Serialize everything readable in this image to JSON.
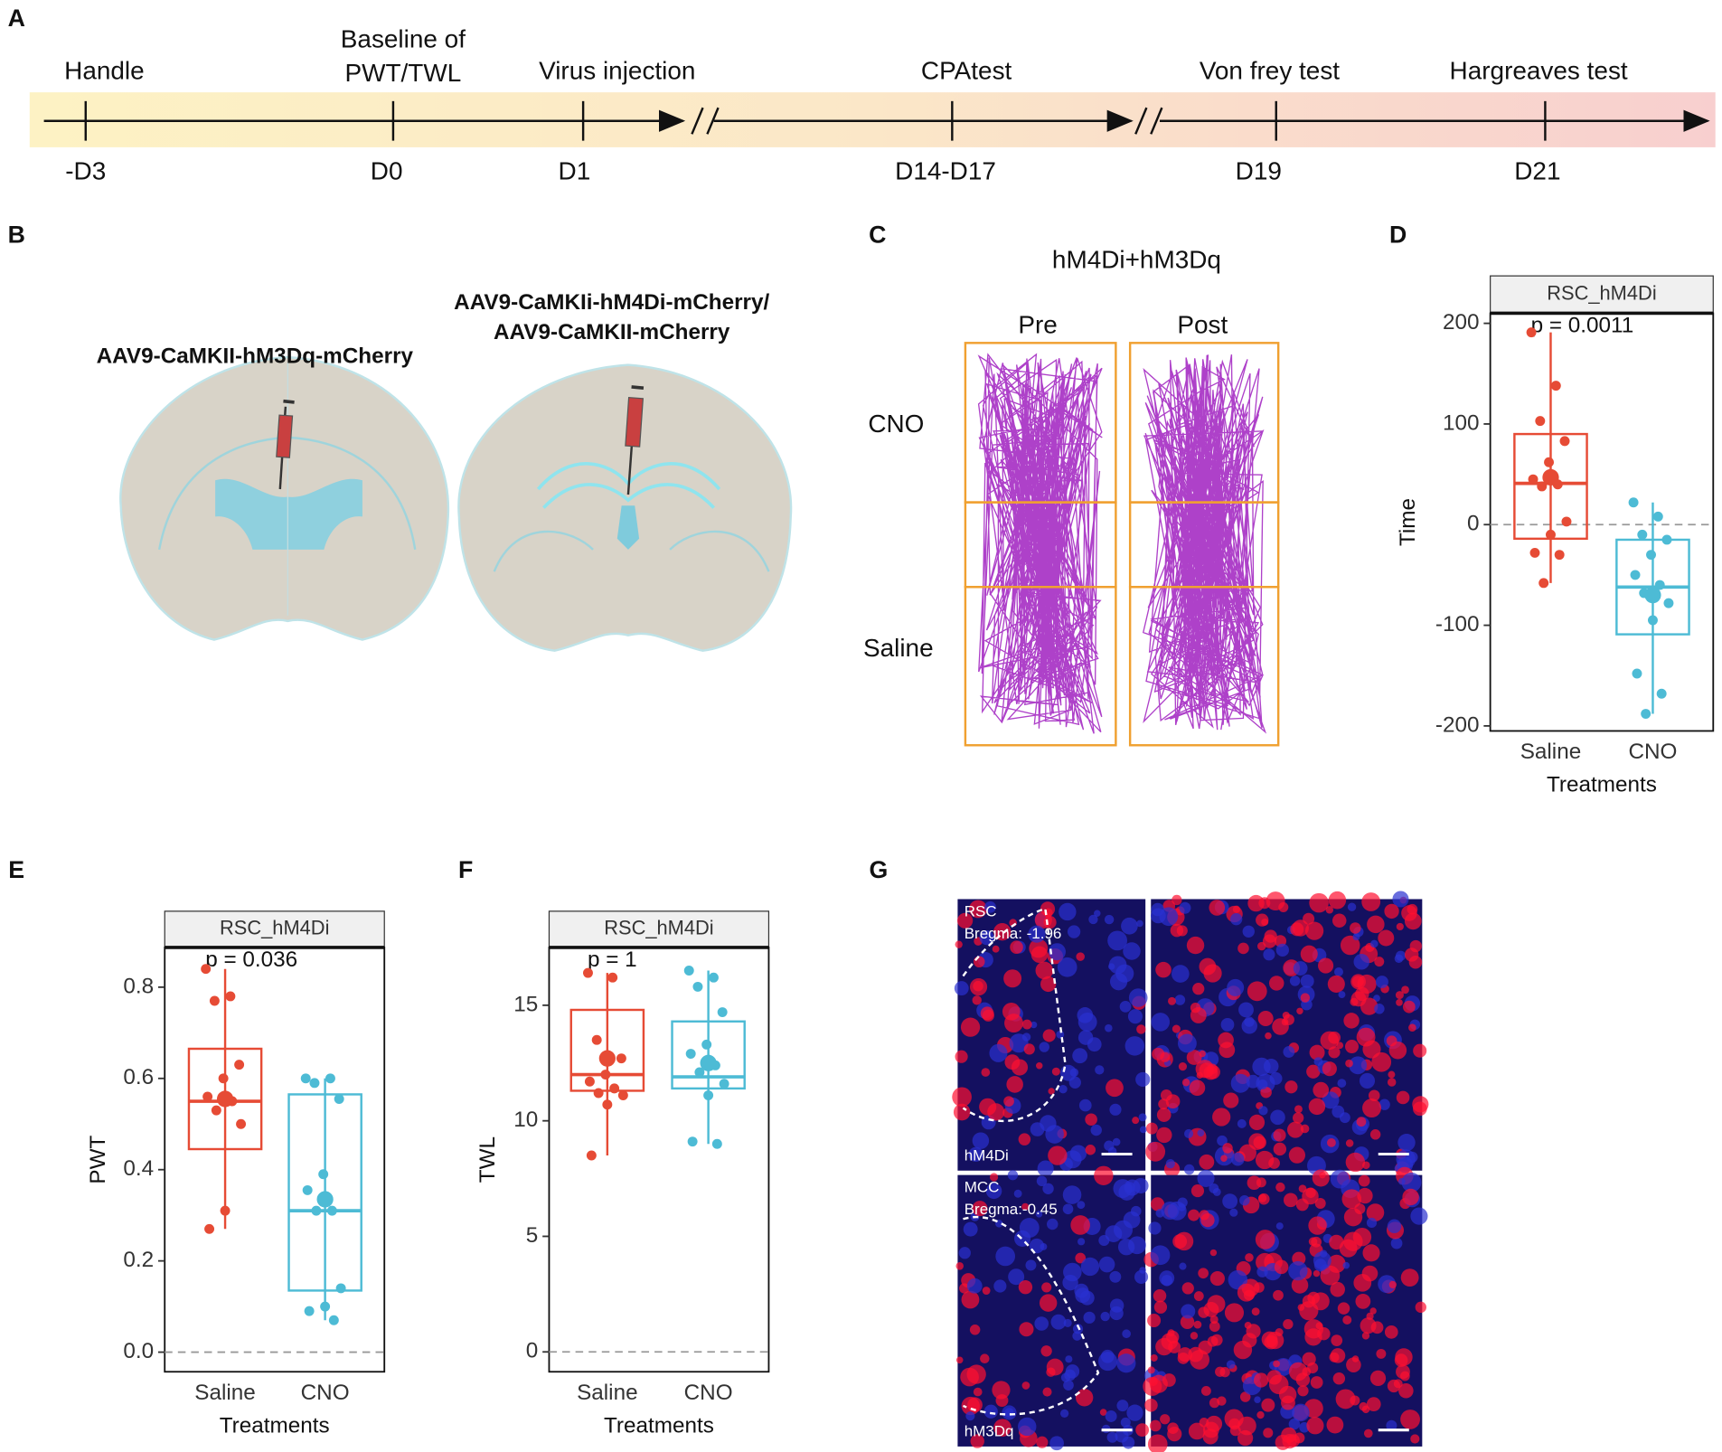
{
  "panel_labels": [
    "A",
    "B",
    "C",
    "D",
    "E",
    "F",
    "G"
  ],
  "timeline": {
    "events": [
      {
        "label_lines": [
          "Handle"
        ],
        "day": "-D3"
      },
      {
        "label_lines": [
          "Baseline of",
          "PWT/TWL"
        ],
        "day": "D0"
      },
      {
        "label_lines": [
          "Virus injection"
        ],
        "day": "D1"
      },
      {
        "label_lines": [
          "CPAtest"
        ],
        "day": "D14-D17"
      },
      {
        "label_lines": [
          "Von frey test"
        ],
        "day": "D19"
      },
      {
        "label_lines": [
          "Hargreaves test"
        ],
        "day": "D21"
      }
    ]
  },
  "panel_b": {
    "left_label": "AAV9-CaMKII-hM3Dq-mCherry",
    "right_label_lines": [
      "AAV9-CaMKIi-hM4Di-mCherry/",
      "AAV9-CaMKII-mCherry"
    ]
  },
  "panel_c": {
    "title": "hM4Di+hM3Dq",
    "columns": [
      "Pre",
      "Post"
    ],
    "rows": [
      "CNO",
      "Saline"
    ]
  },
  "panel_g": {
    "top_labels": [
      "RSC",
      "Bregma: -1.96",
      "hM4Di"
    ],
    "bottom_labels": [
      "MCC",
      "Bregma:-0.45",
      "hM3Dq"
    ]
  },
  "chart_data": [
    {
      "type": "box",
      "strip_label": "RSC_hM4Di",
      "annotation": "p = 0.0011",
      "y_label": "Time",
      "x_label": "Treatments",
      "categories": [
        "Saline",
        "CNO"
      ],
      "ylim": [
        -205,
        210
      ],
      "yticks": [
        -200,
        -100,
        0,
        100,
        200
      ],
      "reference_line": 0,
      "boxes": [
        {
          "color": "#e64b35",
          "min": -58,
          "q1": -14,
          "median": 41,
          "q3": 90,
          "max": 191,
          "mean": 47,
          "points": [
            191,
            138,
            103,
            83,
            62,
            45,
            40,
            38,
            3,
            -10,
            -28,
            -30,
            -58
          ]
        },
        {
          "color": "#4dbbd5",
          "min": -188,
          "q1": -109,
          "median": -62,
          "q3": -15,
          "max": 22,
          "mean": -70,
          "points": [
            22,
            8,
            -10,
            -15,
            -30,
            -50,
            -60,
            -68,
            -78,
            -95,
            -148,
            -168,
            -188
          ]
        }
      ]
    },
    {
      "type": "box",
      "strip_label": "RSC_hM4Di",
      "annotation": "p = 0.036",
      "y_label": "PWT",
      "x_label": "Treatments",
      "categories": [
        "Saline",
        "CNO"
      ],
      "ylim": [
        -0.043,
        0.887
      ],
      "yticks": [
        {
          "value": 0,
          "label": "0.0"
        },
        0.2,
        0.4,
        0.6,
        0.8
      ],
      "reference_line": 0,
      "boxes": [
        {
          "color": "#e64b35",
          "min": 0.27,
          "q1": 0.445,
          "median": 0.55,
          "q3": 0.665,
          "max": 0.84,
          "mean": 0.555,
          "points": [
            0.84,
            0.78,
            0.77,
            0.63,
            0.6,
            0.56,
            0.55,
            0.53,
            0.5,
            0.31,
            0.27
          ]
        },
        {
          "color": "#4dbbd5",
          "min": 0.07,
          "q1": 0.135,
          "median": 0.31,
          "q3": 0.565,
          "max": 0.6,
          "mean": 0.335,
          "points": [
            0.6,
            0.6,
            0.59,
            0.555,
            0.39,
            0.355,
            0.31,
            0.31,
            0.14,
            0.1,
            0.09,
            0.07
          ]
        }
      ]
    },
    {
      "type": "box",
      "strip_label": "RSC_hM4Di",
      "annotation": "p = 1",
      "y_label": "TWL",
      "x_label": "Treatments",
      "categories": [
        "Saline",
        "CNO"
      ],
      "ylim": [
        -0.86,
        17.5
      ],
      "yticks": [
        0,
        5,
        10,
        15
      ],
      "reference_line": 0,
      "boxes": [
        {
          "color": "#e64b35",
          "min": 8.5,
          "q1": 11.3,
          "median": 12,
          "q3": 14.8,
          "max": 16.4,
          "mean": 12.7,
          "points": [
            16.4,
            16.2,
            13.5,
            12.7,
            12,
            11.7,
            11.4,
            11.2,
            11.1,
            10.7,
            8.5
          ]
        },
        {
          "color": "#4dbbd5",
          "min": 9,
          "q1": 11.4,
          "median": 11.9,
          "q3": 14.3,
          "max": 16.5,
          "mean": 12.5,
          "points": [
            16.5,
            16.2,
            15.8,
            14.7,
            13.3,
            12.9,
            12.4,
            12.1,
            11.6,
            11.1,
            9.1,
            9.0
          ]
        }
      ]
    }
  ]
}
